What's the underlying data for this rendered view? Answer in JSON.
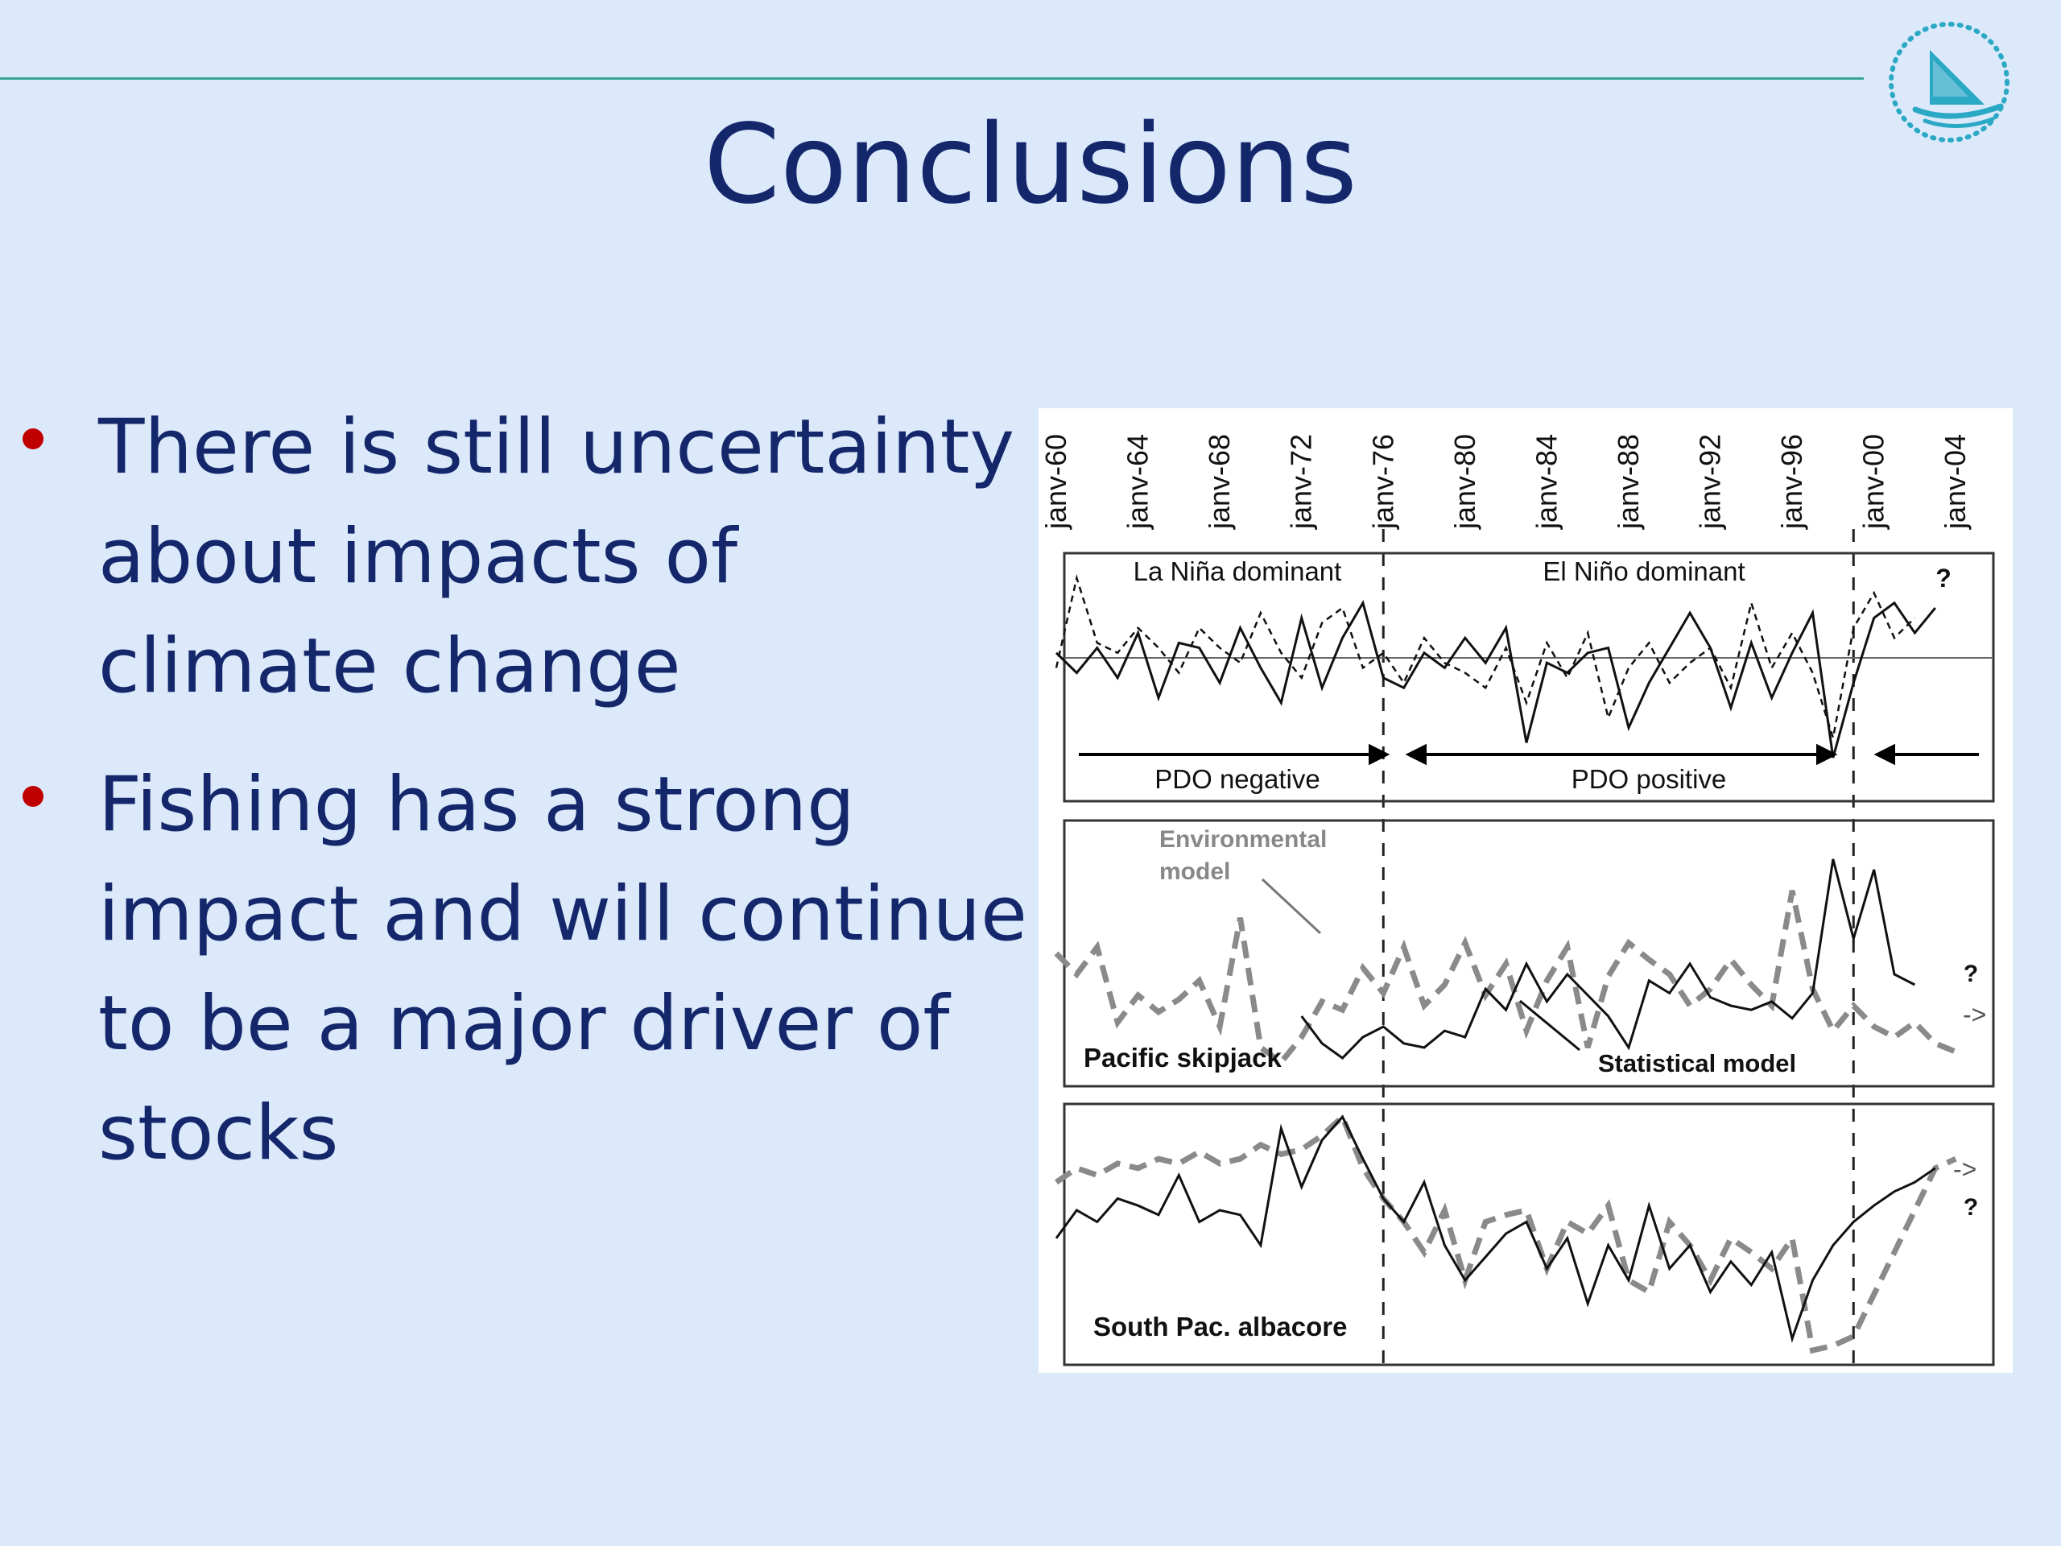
{
  "slide": {
    "title": "Conclusions",
    "bullets": [
      "There is still uncertainty about impacts of climate change",
      "Fishing has a strong impact and will continue to be a major driver of stocks"
    ]
  },
  "logo": {
    "icon": "sail-logo-icon",
    "color": "#2aa8c4"
  },
  "colors": {
    "title": "#14276b",
    "bullet": "#c00000",
    "background": "#dbe9fb",
    "rule": "#3aa39a"
  },
  "chart_data": [
    {
      "type": "line",
      "panel": "climate indices",
      "x_tick_labels": [
        "janv-60",
        "janv-64",
        "janv-68",
        "janv-72",
        "janv-76",
        "janv-80",
        "janv-84",
        "janv-88",
        "janv-92",
        "janv-96",
        "janv-00",
        "janv-04"
      ],
      "xlim": [
        1960,
        2006
      ],
      "regime_shift_years": [
        1976,
        1999
      ],
      "annotations": [
        "La Niña dominant",
        "El Niño dominant",
        "?",
        "PDO negative",
        "PDO positive"
      ],
      "series": [
        {
          "style": "solid black",
          "x": [
            1960,
            1961,
            1962,
            1963,
            1964,
            1965,
            1966,
            1967,
            1968,
            1969,
            1970,
            1971,
            1972,
            1973,
            1974,
            1975,
            1976,
            1977,
            1978,
            1979,
            1980,
            1981,
            1982,
            1983,
            1984,
            1985,
            1986,
            1987,
            1988,
            1989,
            1990,
            1991,
            1992,
            1993,
            1994,
            1995,
            1996,
            1997,
            1998,
            1999,
            2000,
            2001,
            2002,
            2003
          ],
          "values": [
            0.1,
            -0.3,
            0.2,
            -0.4,
            0.5,
            -0.8,
            0.3,
            0.2,
            -0.5,
            0.6,
            -0.2,
            -0.9,
            0.8,
            -0.6,
            0.4,
            1.1,
            -0.4,
            -0.6,
            0.1,
            -0.2,
            0.4,
            -0.1,
            0.6,
            -1.7,
            -0.1,
            -0.3,
            0.1,
            0.2,
            -1.4,
            -0.5,
            0.2,
            0.9,
            0.2,
            -1.0,
            0.3,
            -0.8,
            0.1,
            0.9,
            -2.0,
            -0.5,
            0.8,
            1.1,
            0.5,
            1.0
          ]
        },
        {
          "style": "dashed black",
          "x": [
            1960,
            1961,
            1962,
            1963,
            1964,
            1965,
            1966,
            1967,
            1968,
            1969,
            1970,
            1971,
            1972,
            1973,
            1974,
            1975,
            1976,
            1977,
            1978,
            1979,
            1980,
            1981,
            1982,
            1983,
            1984,
            1985,
            1986,
            1987,
            1988,
            1989,
            1990,
            1991,
            1992,
            1993,
            1994,
            1995,
            1996,
            1997,
            1998,
            1999,
            2000,
            2001,
            2002
          ],
          "values": [
            -0.2,
            1.6,
            0.3,
            0.1,
            0.6,
            0.2,
            -0.3,
            0.6,
            0.2,
            -0.1,
            0.9,
            0.1,
            -0.4,
            0.7,
            1.0,
            -0.2,
            0.1,
            -0.5,
            0.4,
            -0.1,
            -0.3,
            -0.6,
            0.2,
            -0.9,
            0.3,
            -0.4,
            0.5,
            -1.2,
            -0.2,
            0.3,
            -0.5,
            -0.1,
            0.2,
            -0.6,
            1.1,
            -0.2,
            0.5,
            -0.3,
            -1.6,
            0.6,
            1.3,
            0.4,
            0.8
          ]
        }
      ]
    },
    {
      "type": "line",
      "panel": "Pacific skipjack",
      "title": "Pacific skipjack",
      "xlim": [
        1960,
        2006
      ],
      "annotations": [
        "Environmental model",
        "Statistical model",
        "?",
        "->"
      ],
      "series": [
        {
          "name": "Environmental model",
          "style": "dashed gray",
          "x": [
            1960,
            1961,
            1962,
            1963,
            1964,
            1965,
            1966,
            1967,
            1968,
            1969,
            1970,
            1971,
            1972,
            1973,
            1974,
            1975,
            1976,
            1977,
            1978,
            1979,
            1980,
            1981,
            1982,
            1983,
            1984,
            1985,
            1986,
            1987,
            1988,
            1989,
            1990,
            1991,
            1992,
            1993,
            1994,
            1995,
            1996,
            1997,
            1998,
            1999,
            2000,
            2001,
            2002,
            2003,
            2004
          ],
          "values": [
            0.55,
            0.45,
            0.58,
            0.22,
            0.35,
            0.27,
            0.33,
            0.42,
            0.2,
            0.72,
            0.1,
            0.03,
            0.15,
            0.32,
            0.28,
            0.48,
            0.36,
            0.58,
            0.3,
            0.4,
            0.6,
            0.35,
            0.5,
            0.18,
            0.42,
            0.58,
            0.1,
            0.44,
            0.6,
            0.52,
            0.45,
            0.3,
            0.38,
            0.52,
            0.4,
            0.3,
            0.85,
            0.38,
            0.18,
            0.3,
            0.2,
            0.15,
            0.22,
            0.12,
            0.08
          ]
        },
        {
          "name": "Statistical model",
          "style": "solid black",
          "x": [
            1972,
            1973,
            1974,
            1975,
            1976,
            1977,
            1978,
            1979,
            1980,
            1981,
            1982,
            1983,
            1984,
            1985,
            1986,
            1987,
            1988,
            1989,
            1990,
            1991,
            1992,
            1993,
            1994,
            1995,
            1996,
            1997,
            1998,
            1999,
            2000,
            2001,
            2002
          ],
          "values": [
            0.25,
            0.12,
            0.05,
            0.15,
            0.2,
            0.12,
            0.1,
            0.18,
            0.15,
            0.38,
            0.28,
            0.5,
            0.32,
            0.45,
            0.35,
            0.25,
            0.1,
            0.42,
            0.36,
            0.5,
            0.34,
            0.3,
            0.28,
            0.32,
            0.24,
            0.36,
            1.0,
            0.62,
            0.95,
            0.45,
            0.4
          ]
        }
      ]
    },
    {
      "type": "line",
      "panel": "South Pac. albacore",
      "title": "South Pac. albacore",
      "xlim": [
        1960,
        2006
      ],
      "annotations": [
        "?",
        "->"
      ],
      "series": [
        {
          "style": "dashed gray",
          "x": [
            1960,
            1961,
            1962,
            1963,
            1964,
            1965,
            1966,
            1967,
            1968,
            1969,
            1970,
            1971,
            1972,
            1973,
            1974,
            1975,
            1976,
            1977,
            1978,
            1979,
            1980,
            1981,
            1982,
            1983,
            1984,
            1985,
            1986,
            1987,
            1988,
            1989,
            1990,
            1991,
            1992,
            1993,
            1994,
            1995,
            1996,
            1997,
            1998,
            1999,
            2003,
            2004
          ],
          "values": [
            0.72,
            0.78,
            0.75,
            0.8,
            0.78,
            0.82,
            0.8,
            0.85,
            0.8,
            0.82,
            0.88,
            0.84,
            0.86,
            0.92,
            1.0,
            0.78,
            0.65,
            0.55,
            0.42,
            0.6,
            0.3,
            0.55,
            0.58,
            0.6,
            0.35,
            0.55,
            0.5,
            0.62,
            0.3,
            0.25,
            0.55,
            0.45,
            0.3,
            0.48,
            0.42,
            0.35,
            0.48,
            0.0,
            0.02,
            0.06,
            0.78,
            0.82
          ]
        },
        {
          "style": "solid black",
          "x": [
            1960,
            1961,
            1962,
            1963,
            1964,
            1965,
            1966,
            1967,
            1968,
            1969,
            1970,
            1971,
            1972,
            1973,
            1974,
            1975,
            1976,
            1977,
            1978,
            1979,
            1980,
            1981,
            1982,
            1983,
            1984,
            1985,
            1986,
            1987,
            1988,
            1989,
            1990,
            1991,
            1992,
            1993,
            1994,
            1995,
            1996,
            1997,
            1998,
            1999,
            2000,
            2001,
            2002,
            2003
          ],
          "values": [
            0.48,
            0.6,
            0.55,
            0.65,
            0.62,
            0.58,
            0.75,
            0.55,
            0.6,
            0.58,
            0.45,
            0.95,
            0.7,
            0.9,
            1.0,
            0.82,
            0.65,
            0.55,
            0.72,
            0.45,
            0.3,
            0.4,
            0.5,
            0.55,
            0.35,
            0.48,
            0.2,
            0.45,
            0.3,
            0.62,
            0.35,
            0.45,
            0.25,
            0.38,
            0.28,
            0.42,
            0.05,
            0.3,
            0.45,
            0.55,
            0.62,
            0.68,
            0.72,
            0.78
          ]
        }
      ]
    }
  ]
}
